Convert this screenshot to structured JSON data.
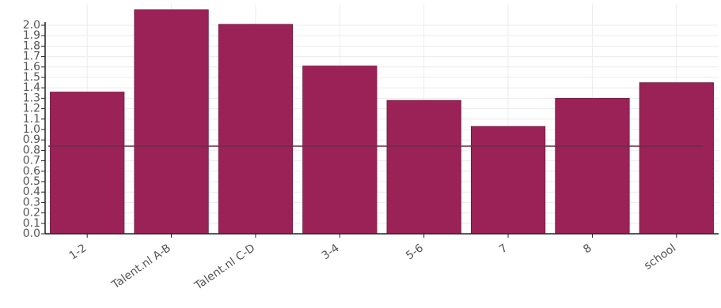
{
  "chart_data": {
    "type": "bar",
    "categories": [
      "1-2",
      "Talent.nl A-B",
      "Talent.nl C-D",
      "3-4",
      "5-6",
      "7",
      "8",
      "school"
    ],
    "values": [
      1.36,
      2.15,
      2.01,
      1.61,
      1.28,
      1.03,
      1.3,
      1.45
    ],
    "color": "#9b2257",
    "reference_line": 0.84,
    "reference_color": "#6e2a4a",
    "ylim": [
      0,
      2.2
    ],
    "yticks": [
      {
        "value": 0,
        "label": "0.0"
      },
      0.1,
      0.2,
      0.3,
      0.4,
      0.5,
      0.6,
      0.7,
      0.8,
      0.9,
      {
        "value": 1,
        "label": "1.0"
      },
      1.1,
      1.2,
      1.3,
      1.4,
      1.5,
      1.6,
      1.7,
      1.8,
      1.9,
      {
        "value": 2,
        "label": "2.0"
      }
    ],
    "grid": true
  }
}
